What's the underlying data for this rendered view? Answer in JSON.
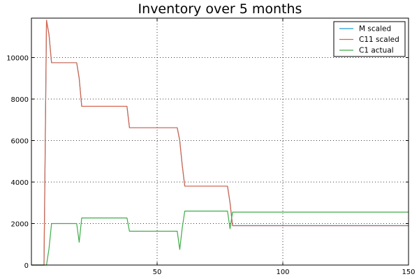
{
  "chart_data": {
    "type": "line",
    "title": "Inventory over 5 months",
    "xlabel": "",
    "ylabel": "",
    "xlim": [
      0,
      150
    ],
    "ylim": [
      0,
      11900
    ],
    "x_ticks": [
      50,
      100,
      150
    ],
    "y_ticks": [
      0,
      2000,
      4000,
      6000,
      8000,
      10000
    ],
    "grid": true,
    "legend_position": "top-right",
    "series": [
      {
        "name": "M scaled",
        "color": "#1f9bd6",
        "x": [
          0,
          5,
          6,
          7,
          8,
          18,
          19,
          20,
          38,
          39,
          58,
          59,
          60,
          61,
          78,
          79,
          80,
          150
        ],
        "y": [
          0,
          0,
          11800,
          11100,
          9750,
          9750,
          9000,
          7650,
          7650,
          6620,
          6620,
          6000,
          4800,
          3800,
          3800,
          3000,
          1900,
          1900
        ]
      },
      {
        "name": "C11 scaled",
        "color": "#d9634a",
        "x": [
          0,
          5,
          6,
          7,
          8,
          18,
          19,
          20,
          38,
          39,
          58,
          59,
          60,
          61,
          78,
          79,
          80,
          150
        ],
        "y": [
          0,
          0,
          11800,
          11100,
          9750,
          9750,
          9000,
          7650,
          7650,
          6620,
          6620,
          6000,
          4800,
          3800,
          3800,
          3000,
          1900,
          1900
        ]
      },
      {
        "name": "C1 actual",
        "color": "#3dad49",
        "x": [
          0,
          5,
          6,
          7,
          8,
          18,
          19,
          20,
          38,
          39,
          58,
          59,
          60,
          61,
          78,
          79,
          80,
          150
        ],
        "y": [
          0,
          0,
          0,
          800,
          2000,
          2000,
          1100,
          2270,
          2270,
          1630,
          1630,
          750,
          1800,
          2600,
          2600,
          1750,
          2550,
          2550
        ]
      }
    ]
  }
}
